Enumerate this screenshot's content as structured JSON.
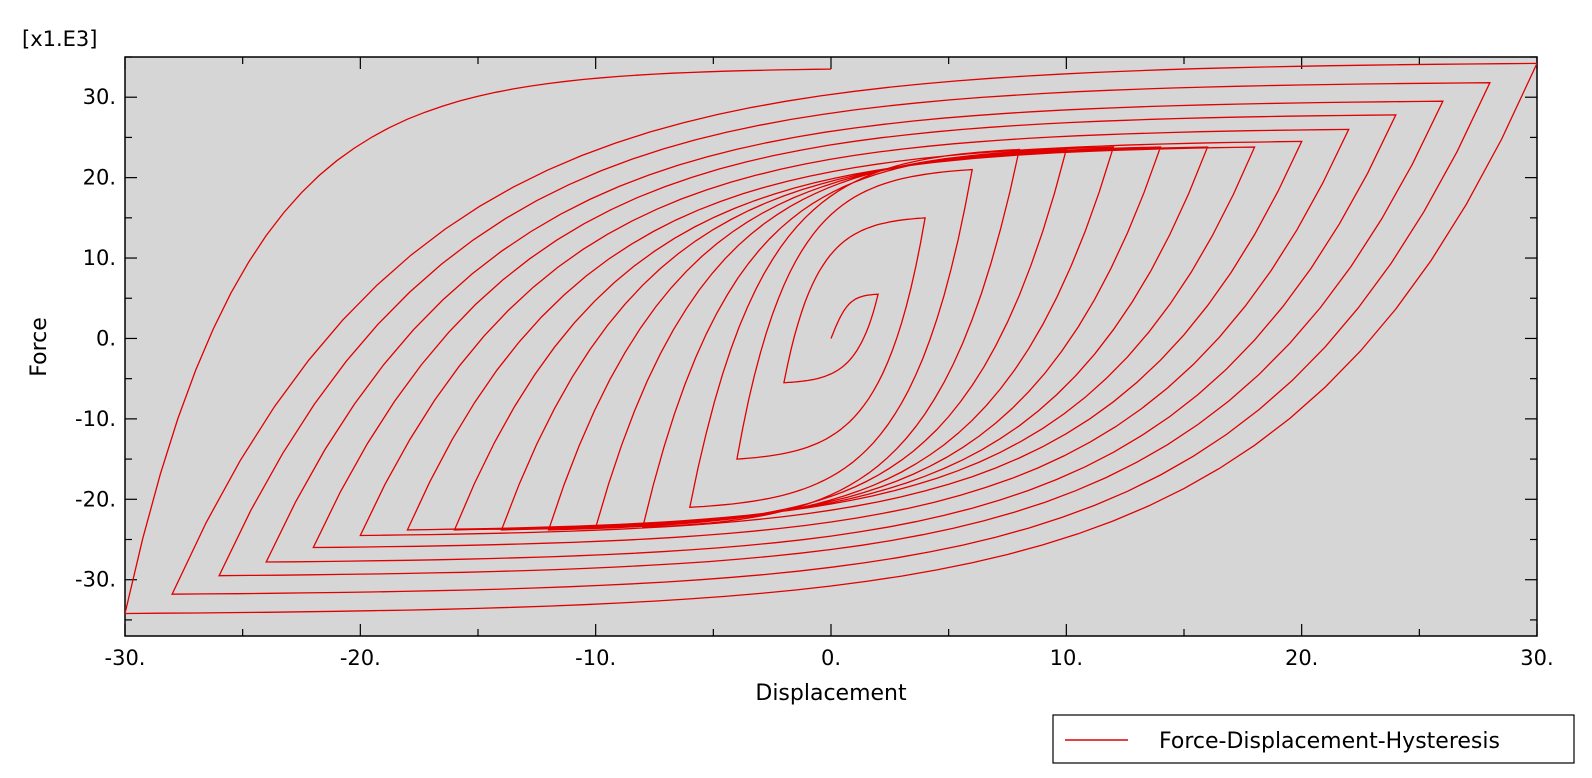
{
  "chart_data": {
    "type": "line",
    "title": "",
    "xlabel": "Displacement",
    "ylabel": "Force",
    "y_multiplier_label": "[x1.E3]",
    "xlim": [
      -30,
      30
    ],
    "ylim": [
      -37,
      35
    ],
    "x_ticks": [
      -30,
      -20,
      -10,
      0,
      10,
      20,
      30
    ],
    "x_tick_labels": [
      "-30.",
      "-20.",
      "-10.",
      "0.",
      "10.",
      "20.",
      "30."
    ],
    "y_ticks": [
      -30,
      -20,
      -10,
      0,
      10,
      20,
      30
    ],
    "y_tick_labels": [
      "-30.",
      "-20.",
      "-10.",
      "0.",
      "10.",
      "20.",
      "30."
    ],
    "legend_position": "bottom-right",
    "plot_background": "#d6d6d6",
    "series": [
      {
        "name": "Force-Displacement-Hysteresis",
        "color": "#e00000",
        "amplitudes": [
          2,
          4,
          6,
          8,
          10,
          12,
          14,
          16,
          18,
          20,
          22,
          24,
          26,
          28,
          30
        ],
        "peak_force_y": [
          5.5,
          15.0,
          21.0,
          23.5,
          23.5,
          23.8,
          23.8,
          23.8,
          23.8,
          24.5,
          26.0,
          27.8,
          29.5,
          31.8,
          34.2
        ],
        "yield_force_y": 23.5,
        "final_point": [
          0.0,
          33.5
        ]
      }
    ]
  }
}
